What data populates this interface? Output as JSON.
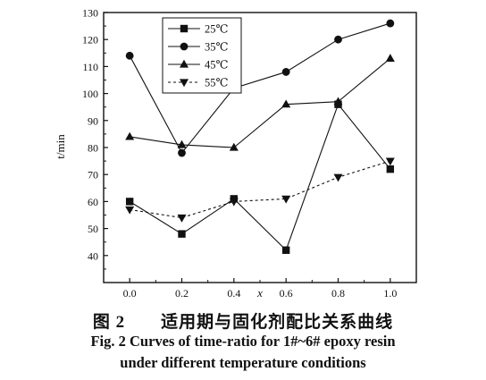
{
  "chart_data": {
    "type": "line",
    "xlabel": "x",
    "ylabel": "t/min",
    "xlim": [
      -0.1,
      1.1
    ],
    "ylim": [
      30,
      130
    ],
    "xticks": [
      "0.0",
      "0.2",
      "0.4",
      "0.6",
      "0.8",
      "1.0"
    ],
    "yticks": [
      "40",
      "50",
      "60",
      "70",
      "80",
      "90",
      "100",
      "110",
      "120",
      "130"
    ],
    "x": [
      0.0,
      0.2,
      0.4,
      0.6,
      0.8,
      1.0
    ],
    "series": [
      {
        "name": "25℃",
        "marker": "square",
        "dash": "solid",
        "values": [
          60,
          48,
          61,
          42,
          96,
          72
        ]
      },
      {
        "name": "35℃",
        "marker": "circle",
        "dash": "solid",
        "values": [
          114,
          78,
          102,
          108,
          120,
          126
        ]
      },
      {
        "name": "45℃",
        "marker": "triangle-up",
        "dash": "solid",
        "values": [
          84,
          81,
          80,
          96,
          97,
          113
        ]
      },
      {
        "name": "55℃",
        "marker": "triangle-down",
        "dash": "dashed",
        "values": [
          57,
          54,
          60,
          61,
          69,
          75
        ]
      }
    ],
    "legend": "top-left inside plot",
    "grid": false,
    "color": "#111111"
  },
  "caption": {
    "cn_num": "图 2",
    "cn_title": "适用期与固化剂配比关系曲线",
    "en_line1": "Fig. 2   Curves of time-ratio for 1#~6# epoxy resin",
    "en_line2": "under different temperature conditions"
  }
}
